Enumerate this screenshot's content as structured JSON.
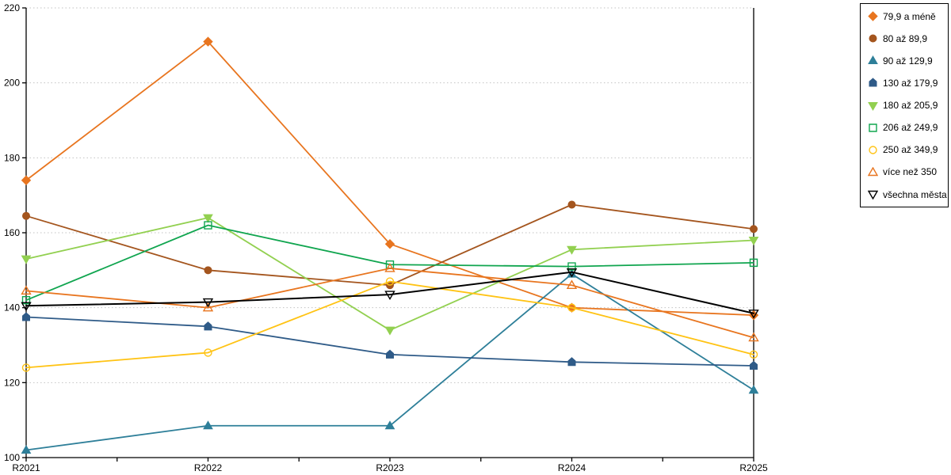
{
  "chart_data": {
    "type": "line",
    "title": "",
    "xlabel": "",
    "ylabel": "",
    "x_categories": [
      "R2021",
      "R2022",
      "R2023",
      "R2024",
      "R2025"
    ],
    "y_axis": {
      "min": 100,
      "max": 220,
      "tick_step": 20,
      "ticks": [
        100,
        120,
        140,
        160,
        180,
        200,
        220
      ]
    },
    "grid": {
      "horizontal_dotted": true,
      "color": "#c2c2c2"
    },
    "frame": {
      "axis_color": "#000000",
      "has_right_border": true,
      "has_top_border": false
    },
    "legend": {
      "position": "right",
      "bordered": true,
      "border_color": "#000000"
    },
    "series": [
      {
        "name": "79,9 a méně",
        "color": "#e8751f",
        "marker": "diamond",
        "marker_fill": "solid",
        "values": [
          174,
          211,
          157,
          140,
          138
        ]
      },
      {
        "name": "80 až 89,9",
        "color": "#a4551e",
        "marker": "circle",
        "marker_fill": "solid",
        "values": [
          164.5,
          150,
          146,
          167.5,
          161
        ]
      },
      {
        "name": "90 až 129,9",
        "color": "#2e7f99",
        "marker": "triangle",
        "marker_fill": "solid",
        "values": [
          102,
          108.5,
          108.5,
          149,
          118
        ]
      },
      {
        "name": "130 až 179,9",
        "color": "#2f5b88",
        "marker": "pentagon",
        "marker_fill": "solid",
        "values": [
          137.5,
          135,
          127.5,
          125.5,
          124.5
        ]
      },
      {
        "name": "180 až 205,9",
        "color": "#92d050",
        "marker": "triangle-down",
        "marker_fill": "solid",
        "values": [
          153,
          164,
          134,
          155.5,
          158
        ]
      },
      {
        "name": "206 až 249,9",
        "color": "#10a54f",
        "marker": "square",
        "marker_fill": "open",
        "values": [
          142,
          162,
          151.5,
          151,
          152
        ]
      },
      {
        "name": "250 až 349,9",
        "color": "#ffc314",
        "marker": "circle",
        "marker_fill": "open",
        "values": [
          124,
          128,
          147,
          140,
          127.5
        ]
      },
      {
        "name": "více než 350",
        "color": "#e8751f",
        "marker": "triangle",
        "marker_fill": "open",
        "values": [
          144.5,
          140,
          150.5,
          146,
          132
        ]
      },
      {
        "name": "všechna města",
        "color": "#000000",
        "marker": "triangle-down",
        "marker_fill": "open",
        "values": [
          140.5,
          141.5,
          143.5,
          149.5,
          138.5
        ]
      }
    ]
  }
}
